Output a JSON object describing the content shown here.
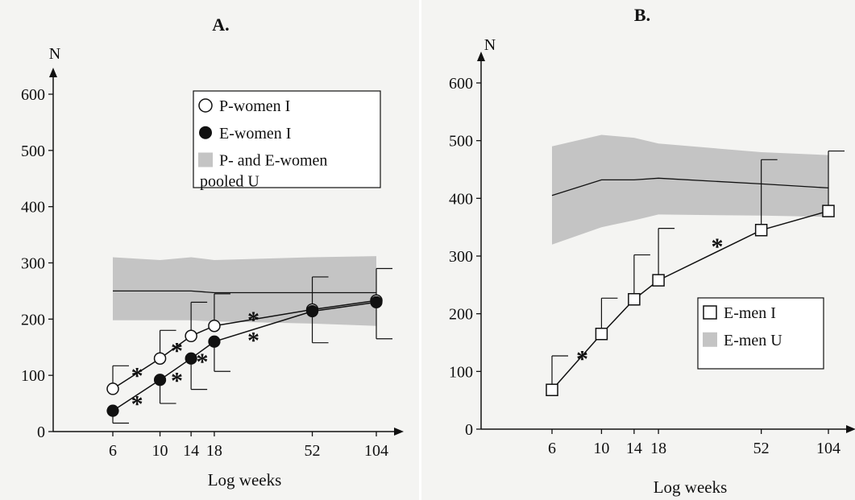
{
  "chart_data": [
    {
      "type": "line",
      "title": "A.",
      "ylabel": "N",
      "xlabel": "Log weeks",
      "x_scale": "log",
      "ylim": [
        0,
        600
      ],
      "yticks": [
        0,
        100,
        200,
        300,
        400,
        500,
        600
      ],
      "xticks": [
        6,
        10,
        14,
        18,
        52,
        104
      ],
      "legend_position": "top-right",
      "series": [
        {
          "name": "P-women I",
          "marker": "open-circle",
          "x": [
            6,
            10,
            14,
            18,
            52,
            104
          ],
          "y": [
            76,
            130,
            170,
            188,
            217,
            233
          ],
          "err_upper": [
            117,
            180,
            230,
            245,
            275,
            290
          ]
        },
        {
          "name": "E-women I",
          "marker": "filled-circle",
          "x": [
            6,
            10,
            14,
            18,
            52,
            104
          ],
          "y": [
            37,
            92,
            130,
            160,
            214,
            230
          ],
          "err_lower": [
            15,
            50,
            75,
            107,
            158,
            165
          ]
        },
        {
          "name": "P- and E-women pooled U",
          "kind": "band",
          "x": [
            6,
            10,
            14,
            18,
            52,
            104
          ],
          "y": [
            250,
            250,
            250,
            247,
            247,
            247
          ],
          "band_upper": [
            310,
            305,
            310,
            305,
            310,
            312
          ],
          "band_lower": [
            198,
            198,
            198,
            196,
            192,
            188
          ]
        }
      ],
      "annotations": [
        {
          "text": "*",
          "x": 7.8,
          "y": 105
        },
        {
          "text": "*",
          "x": 12.0,
          "y": 150
        },
        {
          "text": "*",
          "x": 27.5,
          "y": 205
        },
        {
          "text": "*",
          "x": 7.8,
          "y": 55
        },
        {
          "text": "*",
          "x": 12.0,
          "y": 97
        },
        {
          "text": "*",
          "x": 15.8,
          "y": 130
        },
        {
          "text": "*",
          "x": 27.5,
          "y": 168
        }
      ],
      "colors": {
        "band": "#c4c4c4",
        "line": "#111111"
      }
    },
    {
      "type": "line",
      "title": "B.",
      "ylabel": "N",
      "xlabel": "Log weeks",
      "x_scale": "log",
      "ylim": [
        0,
        600
      ],
      "yticks": [
        0,
        100,
        200,
        300,
        400,
        500,
        600
      ],
      "xticks": [
        6,
        10,
        14,
        18,
        52,
        104
      ],
      "legend_position": "bottom-right",
      "series": [
        {
          "name": "E-men I",
          "marker": "open-square",
          "x": [
            6,
            10,
            14,
            18,
            52,
            104
          ],
          "y": [
            68,
            165,
            225,
            258,
            345,
            378
          ],
          "err_upper": [
            127,
            227,
            302,
            348,
            467,
            482
          ]
        },
        {
          "name": "E-men U",
          "kind": "band",
          "x": [
            6,
            10,
            14,
            18,
            52,
            104
          ],
          "y": [
            405,
            432,
            432,
            435,
            425,
            418
          ],
          "band_upper": [
            490,
            510,
            505,
            495,
            480,
            475
          ],
          "band_lower": [
            320,
            350,
            362,
            372,
            370,
            368
          ]
        }
      ],
      "annotations": [
        {
          "text": "*",
          "x": 8.2,
          "y": 128
        },
        {
          "text": "*",
          "x": 33.0,
          "y": 322
        }
      ],
      "colors": {
        "band": "#c4c4c4",
        "line": "#111111"
      }
    }
  ]
}
